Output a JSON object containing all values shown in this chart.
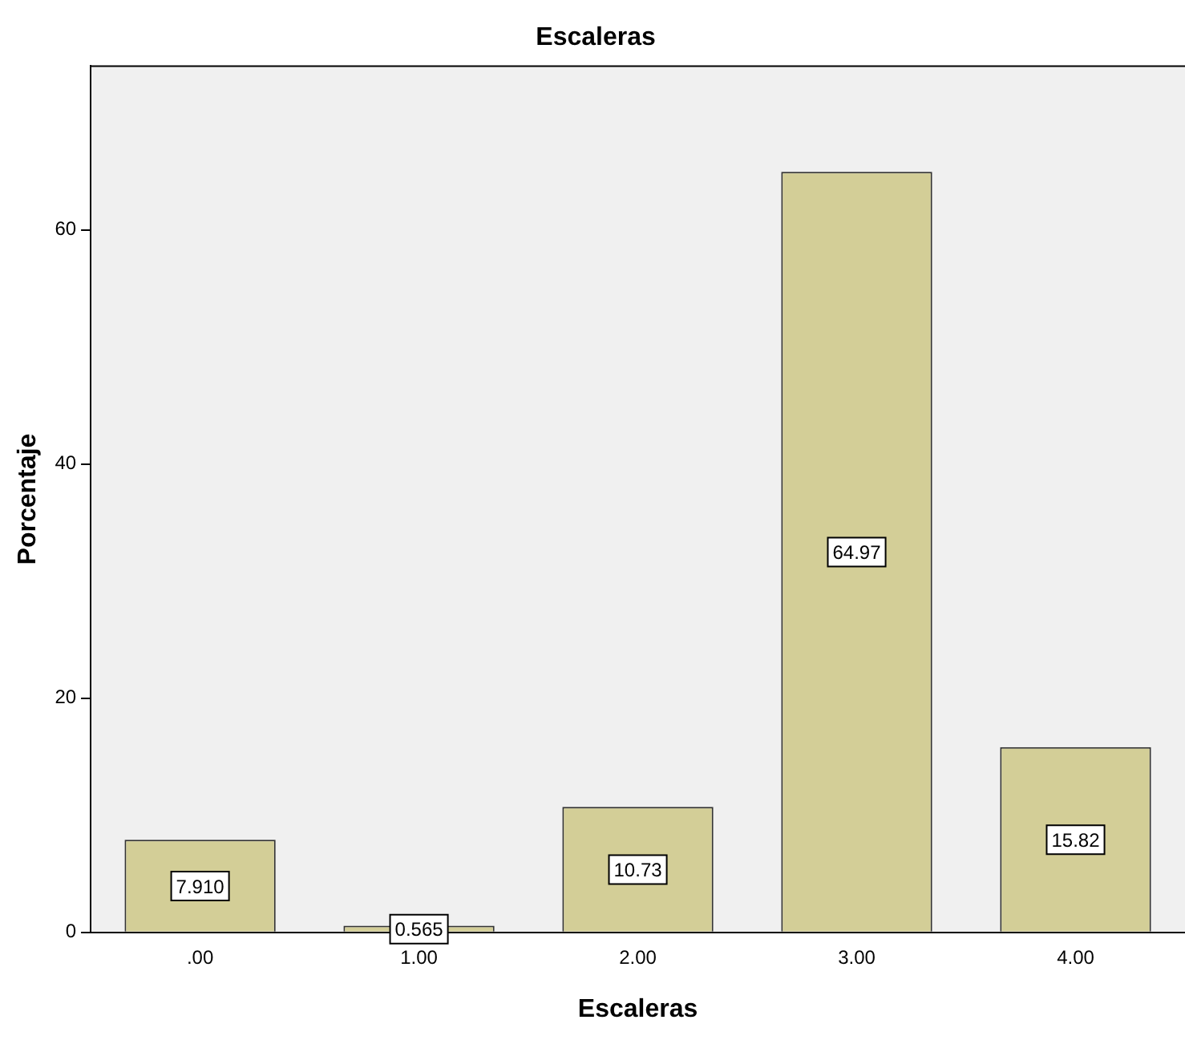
{
  "chart_data": {
    "type": "bar",
    "title": "Escaleras",
    "xlabel": "Escaleras",
    "ylabel": "Porcentaje",
    "categories": [
      ".00",
      "1.00",
      "2.00",
      "3.00",
      "4.00"
    ],
    "values": [
      7.91,
      0.565,
      10.73,
      64.97,
      15.82
    ],
    "value_labels": [
      "7.910",
      "0.565",
      "10.73",
      "64.97",
      "15.82"
    ],
    "color": "#d3ce97",
    "ylim": [
      0,
      74
    ],
    "yticks": [
      0,
      20,
      40,
      60
    ],
    "grid": false,
    "legend": false
  }
}
